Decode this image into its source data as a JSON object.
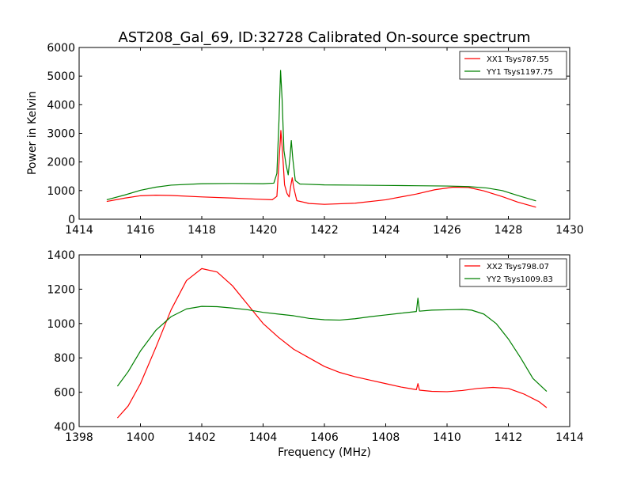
{
  "title": "AST208_Gal_69, ID:32728 Calibrated On-source spectrum",
  "ylabel": "Power in Kelvin",
  "xlabel": "Frequency (MHz)",
  "colors": {
    "red": "#ff0000",
    "green": "#008000"
  },
  "chart_data": [
    {
      "type": "line",
      "xlim": [
        1414,
        1430
      ],
      "ylim": [
        0,
        6000
      ],
      "x_ticks": [
        1414,
        1416,
        1418,
        1420,
        1422,
        1424,
        1426,
        1428,
        1430
      ],
      "y_ticks": [
        0,
        1000,
        2000,
        3000,
        4000,
        5000,
        6000
      ],
      "legend": "top-right",
      "series": [
        {
          "name": "XX1 Tsys787.55",
          "color": "#ff0000",
          "points": [
            [
              1414.9,
              620
            ],
            [
              1415.5,
              740
            ],
            [
              1416.0,
              820
            ],
            [
              1416.5,
              840
            ],
            [
              1417.0,
              830
            ],
            [
              1418.0,
              780
            ],
            [
              1419.0,
              740
            ],
            [
              1419.8,
              700
            ],
            [
              1420.3,
              680
            ],
            [
              1420.45,
              800
            ],
            [
              1420.52,
              2000
            ],
            [
              1420.58,
              3100
            ],
            [
              1420.63,
              2400
            ],
            [
              1420.7,
              1200
            ],
            [
              1420.78,
              900
            ],
            [
              1420.85,
              780
            ],
            [
              1420.9,
              1150
            ],
            [
              1420.95,
              1450
            ],
            [
              1421.0,
              1100
            ],
            [
              1421.1,
              650
            ],
            [
              1421.5,
              550
            ],
            [
              1422.0,
              520
            ],
            [
              1423.0,
              560
            ],
            [
              1424.0,
              680
            ],
            [
              1425.0,
              880
            ],
            [
              1425.6,
              1030
            ],
            [
              1426.2,
              1120
            ],
            [
              1426.7,
              1110
            ],
            [
              1427.2,
              990
            ],
            [
              1427.8,
              790
            ],
            [
              1428.3,
              600
            ],
            [
              1428.9,
              420
            ]
          ]
        },
        {
          "name": "YY1 Tsys1197.75",
          "color": "#008000",
          "points": [
            [
              1414.9,
              680
            ],
            [
              1415.5,
              850
            ],
            [
              1416.0,
              1010
            ],
            [
              1416.5,
              1120
            ],
            [
              1417.0,
              1190
            ],
            [
              1418.0,
              1240
            ],
            [
              1419.0,
              1250
            ],
            [
              1420.0,
              1240
            ],
            [
              1420.35,
              1260
            ],
            [
              1420.45,
              1600
            ],
            [
              1420.52,
              3500
            ],
            [
              1420.57,
              5200
            ],
            [
              1420.62,
              4200
            ],
            [
              1420.68,
              2400
            ],
            [
              1420.75,
              1900
            ],
            [
              1420.82,
              1550
            ],
            [
              1420.88,
              2200
            ],
            [
              1420.92,
              2750
            ],
            [
              1420.97,
              2100
            ],
            [
              1421.05,
              1350
            ],
            [
              1421.2,
              1230
            ],
            [
              1422.0,
              1200
            ],
            [
              1423.0,
              1190
            ],
            [
              1424.0,
              1180
            ],
            [
              1425.0,
              1170
            ],
            [
              1426.0,
              1160
            ],
            [
              1426.7,
              1140
            ],
            [
              1427.3,
              1090
            ],
            [
              1427.8,
              1000
            ],
            [
              1428.3,
              830
            ],
            [
              1428.9,
              640
            ]
          ]
        }
      ]
    },
    {
      "type": "line",
      "xlim": [
        1398,
        1414
      ],
      "ylim": [
        400,
        1400
      ],
      "x_ticks": [
        1398,
        1400,
        1402,
        1404,
        1406,
        1408,
        1410,
        1412,
        1414
      ],
      "y_ticks": [
        400,
        600,
        800,
        1000,
        1200,
        1400
      ],
      "legend": "top-right",
      "series": [
        {
          "name": "XX2 Tsys798.07",
          "color": "#ff0000",
          "points": [
            [
              1399.25,
              450
            ],
            [
              1399.6,
              520
            ],
            [
              1400.0,
              650
            ],
            [
              1400.5,
              860
            ],
            [
              1401.0,
              1080
            ],
            [
              1401.5,
              1250
            ],
            [
              1402.0,
              1320
            ],
            [
              1402.5,
              1300
            ],
            [
              1403.0,
              1220
            ],
            [
              1403.5,
              1110
            ],
            [
              1404.0,
              1000
            ],
            [
              1404.5,
              920
            ],
            [
              1405.0,
              850
            ],
            [
              1405.5,
              800
            ],
            [
              1406.0,
              750
            ],
            [
              1406.5,
              715
            ],
            [
              1407.0,
              690
            ],
            [
              1407.5,
              670
            ],
            [
              1408.0,
              650
            ],
            [
              1408.5,
              630
            ],
            [
              1409.0,
              615
            ],
            [
              1409.05,
              650
            ],
            [
              1409.1,
              612
            ],
            [
              1409.5,
              605
            ],
            [
              1410.0,
              603
            ],
            [
              1410.5,
              610
            ],
            [
              1411.0,
              622
            ],
            [
              1411.5,
              628
            ],
            [
              1412.0,
              622
            ],
            [
              1412.5,
              590
            ],
            [
              1413.0,
              545
            ],
            [
              1413.25,
              510
            ]
          ]
        },
        {
          "name": "YY2 Tsys1009.83",
          "color": "#008000",
          "points": [
            [
              1399.25,
              635
            ],
            [
              1399.6,
              720
            ],
            [
              1400.0,
              840
            ],
            [
              1400.5,
              960
            ],
            [
              1401.0,
              1040
            ],
            [
              1401.5,
              1085
            ],
            [
              1402.0,
              1100
            ],
            [
              1402.5,
              1098
            ],
            [
              1403.0,
              1090
            ],
            [
              1403.5,
              1080
            ],
            [
              1404.0,
              1065
            ],
            [
              1404.5,
              1055
            ],
            [
              1405.0,
              1045
            ],
            [
              1405.5,
              1030
            ],
            [
              1406.0,
              1022
            ],
            [
              1406.5,
              1020
            ],
            [
              1407.0,
              1028
            ],
            [
              1407.5,
              1040
            ],
            [
              1408.0,
              1050
            ],
            [
              1408.5,
              1060
            ],
            [
              1409.0,
              1070
            ],
            [
              1409.05,
              1148
            ],
            [
              1409.1,
              1072
            ],
            [
              1409.5,
              1078
            ],
            [
              1410.0,
              1080
            ],
            [
              1410.5,
              1082
            ],
            [
              1410.8,
              1078
            ],
            [
              1411.2,
              1055
            ],
            [
              1411.6,
              1000
            ],
            [
              1412.0,
              910
            ],
            [
              1412.4,
              800
            ],
            [
              1412.8,
              680
            ],
            [
              1413.25,
              605
            ]
          ]
        }
      ]
    }
  ]
}
